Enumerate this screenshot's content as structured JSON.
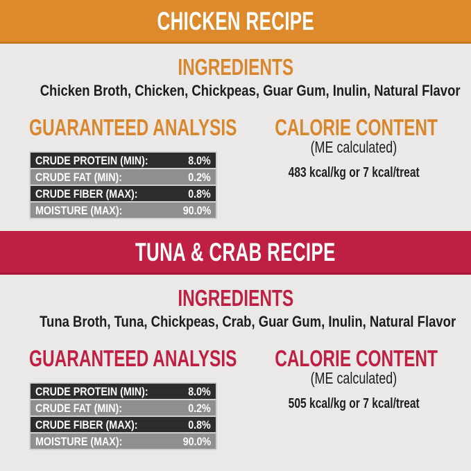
{
  "shared_colors": {
    "page_bg": "#eae9e7",
    "banner_text": "#ffffff",
    "body_text": "#1d1d1b",
    "table_row_dark": "#2d2d2b",
    "table_row_light": "#8f8f8d",
    "table_border": "#d3d2d0"
  },
  "sections": [
    {
      "banner": "CHICKEN RECIPE",
      "colors": {
        "accent": "#d9872e",
        "banner_bg": "#dc8a2b",
        "banner_edge": "#c2751c"
      },
      "ingredients_title": "INGREDIENTS",
      "ingredients": "Chicken Broth, Chicken, Chickpeas, Guar Gum, Inulin, Natural Flavor",
      "analysis": {
        "title": "GUARANTEED ANALYSIS",
        "rows": [
          {
            "label": "CRUDE PROTEIN (MIN):",
            "value": "8.0%"
          },
          {
            "label": "CRUDE FAT (MIN):",
            "value": "0.2%"
          },
          {
            "label": "CRUDE FIBER (MAX):",
            "value": "0.8%"
          },
          {
            "label": "MOISTURE (MAX):",
            "value": "90.0%"
          }
        ]
      },
      "calorie": {
        "title": "CALORIE CONTENT",
        "subtitle": "(ME calculated)",
        "value": "483 kcal/kg or 7 kcal/treat"
      }
    },
    {
      "banner": "TUNA & CRAB RECIPE",
      "colors": {
        "accent": "#c01f44",
        "banner_bg": "#c01f44",
        "banner_edge": "#a5183a"
      },
      "ingredients_title": "INGREDIENTS",
      "ingredients": "Tuna Broth, Tuna, Chickpeas, Crab, Guar Gum, Inulin, Natural Flavor",
      "analysis": {
        "title": "GUARANTEED ANALYSIS",
        "rows": [
          {
            "label": "CRUDE PROTEIN (MIN):",
            "value": "8.0%"
          },
          {
            "label": "CRUDE FAT (MIN):",
            "value": "0.2%"
          },
          {
            "label": "CRUDE FIBER (MAX):",
            "value": "0.8%"
          },
          {
            "label": "MOISTURE (MAX):",
            "value": "90.0%"
          }
        ]
      },
      "calorie": {
        "title": "CALORIE CONTENT",
        "subtitle": "(ME calculated)",
        "value": "505 kcal/kg or 7 kcal/treat"
      }
    }
  ]
}
